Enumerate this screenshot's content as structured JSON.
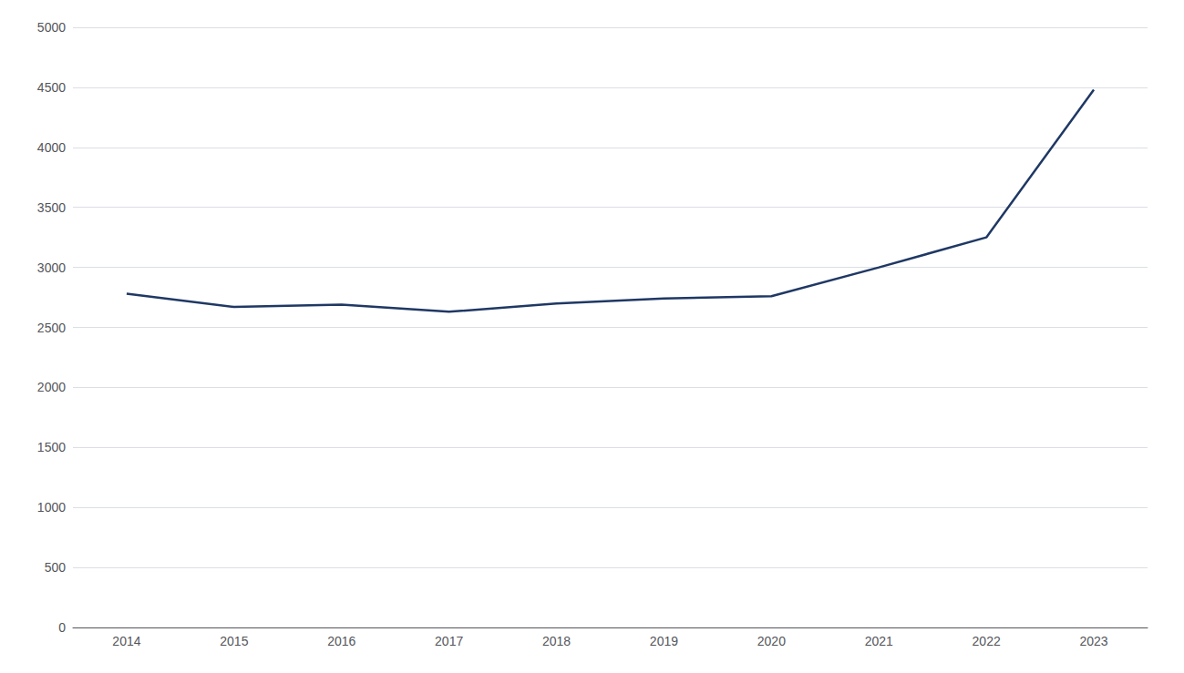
{
  "chart_data": {
    "type": "line",
    "x": [
      2014,
      2015,
      2016,
      2017,
      2018,
      2019,
      2020,
      2021,
      2022,
      2023
    ],
    "values": [
      2780,
      2670,
      2690,
      2630,
      2700,
      2740,
      2760,
      3000,
      3250,
      4480
    ],
    "color": "#1F3864",
    "xlim": [
      2013.5,
      2023.5
    ],
    "xticks": [
      2014,
      2015,
      2016,
      2017,
      2018,
      2019,
      2020,
      2021,
      2022,
      2023
    ],
    "ylim": [
      0,
      5000
    ],
    "yticks": [
      0,
      500,
      1000,
      1500,
      2000,
      2500,
      3000,
      3500,
      4000,
      4500,
      5000
    ],
    "grid": true
  }
}
